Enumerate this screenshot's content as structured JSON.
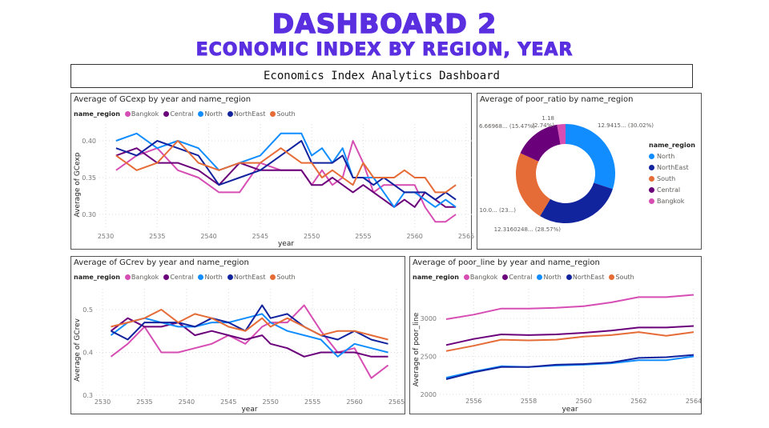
{
  "header": {
    "title": "DASHBOARD 2",
    "subtitle": "ECONOMIC INDEX BY REGION, YEAR",
    "banner": "Economics Index Analytics Dashboard"
  },
  "colors": {
    "Bangkok": "#d64eb3",
    "Central": "#6b007b",
    "North": "#118dff",
    "NorthEast": "#12239e",
    "South": "#e66c37",
    "title": "#5a2fe0"
  },
  "legend_title": "name_region",
  "chart_data": [
    {
      "id": "gcexp",
      "type": "line",
      "title": "Average of GCexp by year and name_region",
      "xlabel": "year",
      "ylabel": "Average of GCexp",
      "xticks": [
        "2530",
        "2535",
        "2540",
        "2545",
        "2550",
        "2555",
        "2560",
        "2565"
      ],
      "yticks": [
        "0.30",
        "0.35",
        "0.40"
      ],
      "xlim": [
        2530,
        2565
      ],
      "grid": true,
      "legend": "top-left",
      "x": [
        2531,
        2533,
        2535,
        2537,
        2539,
        2541,
        2543,
        2545,
        2547,
        2549,
        2550,
        2551,
        2552,
        2553,
        2554,
        2555,
        2556,
        2557,
        2558,
        2559,
        2560,
        2561,
        2562,
        2563,
        2564
      ],
      "series": [
        {
          "name": "Bangkok",
          "values": [
            0.36,
            0.38,
            0.39,
            0.36,
            0.35,
            0.33,
            0.33,
            0.37,
            0.36,
            0.36,
            0.34,
            0.36,
            0.34,
            0.35,
            0.4,
            0.37,
            0.33,
            0.34,
            0.34,
            0.34,
            0.34,
            0.31,
            0.29,
            0.29,
            0.3
          ]
        },
        {
          "name": "Central",
          "values": [
            0.38,
            0.39,
            0.37,
            0.37,
            0.36,
            0.34,
            0.37,
            0.36,
            0.36,
            0.36,
            0.34,
            0.34,
            0.35,
            0.34,
            0.33,
            0.34,
            0.33,
            0.32,
            0.31,
            0.32,
            0.31,
            0.33,
            0.32,
            0.31,
            0.31
          ]
        },
        {
          "name": "North",
          "values": [
            0.4,
            0.41,
            0.39,
            0.4,
            0.39,
            0.36,
            0.37,
            0.38,
            0.41,
            0.41,
            0.38,
            0.39,
            0.37,
            0.39,
            0.35,
            0.35,
            0.35,
            0.33,
            0.31,
            0.33,
            0.33,
            0.32,
            0.31,
            0.32,
            0.31
          ]
        },
        {
          "name": "NorthEast",
          "values": [
            0.39,
            0.38,
            0.4,
            0.39,
            0.38,
            0.34,
            0.35,
            0.36,
            0.38,
            0.4,
            0.37,
            0.37,
            0.37,
            0.38,
            0.35,
            0.35,
            0.34,
            0.35,
            0.34,
            0.33,
            0.33,
            0.33,
            0.32,
            0.33,
            0.32
          ]
        },
        {
          "name": "South",
          "values": [
            0.38,
            0.36,
            0.37,
            0.4,
            0.37,
            0.36,
            0.37,
            0.37,
            0.39,
            0.37,
            0.37,
            0.35,
            0.36,
            0.35,
            0.34,
            0.37,
            0.35,
            0.35,
            0.35,
            0.36,
            0.35,
            0.35,
            0.33,
            0.33,
            0.34
          ]
        }
      ]
    },
    {
      "id": "poor_ratio",
      "type": "pie",
      "title": "Average of poor_ratio by name_region",
      "legend": "right",
      "slices": [
        {
          "name": "North",
          "percent": 30.02,
          "label": "12.9415... (30.02%)"
        },
        {
          "name": "NorthEast",
          "percent": 28.57,
          "label": "12.3160248... (28.57%)"
        },
        {
          "name": "South",
          "percent": 23.2,
          "label": "10.0... (23...)"
        },
        {
          "name": "Central",
          "percent": 15.47,
          "label": "6.66968... (15.47%)"
        },
        {
          "name": "Bangkok",
          "percent": 2.74,
          "label": "1.18",
          "label2": "(2.74%)"
        }
      ]
    },
    {
      "id": "gcrev",
      "type": "line",
      "title": "Average of GCrev by year and name_region",
      "xlabel": "year",
      "ylabel": "Average of GCrev",
      "xticks": [
        "2530",
        "2535",
        "2540",
        "2545",
        "2550",
        "2555",
        "2560",
        "2565"
      ],
      "yticks": [
        "0.3",
        "0.4",
        "0.5"
      ],
      "xlim": [
        2530,
        2565
      ],
      "grid": true,
      "legend": "top-left",
      "x": [
        2531,
        2533,
        2535,
        2537,
        2539,
        2541,
        2543,
        2545,
        2547,
        2549,
        2550,
        2552,
        2554,
        2556,
        2558,
        2560,
        2562,
        2564
      ],
      "series": [
        {
          "name": "Bangkok",
          "values": [
            0.39,
            0.42,
            0.46,
            0.4,
            0.4,
            0.41,
            0.42,
            0.44,
            0.42,
            0.46,
            0.47,
            0.47,
            0.51,
            0.45,
            0.4,
            0.41,
            0.34,
            0.37
          ]
        },
        {
          "name": "Central",
          "values": [
            0.45,
            0.48,
            0.46,
            0.46,
            0.47,
            0.44,
            0.45,
            0.44,
            0.43,
            0.44,
            0.42,
            0.41,
            0.39,
            0.4,
            0.4,
            0.4,
            0.39,
            0.39
          ]
        },
        {
          "name": "North",
          "values": [
            0.44,
            0.47,
            0.48,
            0.47,
            0.46,
            0.46,
            0.47,
            0.47,
            0.48,
            0.49,
            0.47,
            0.45,
            0.44,
            0.43,
            0.39,
            0.42,
            0.41,
            0.4
          ]
        },
        {
          "name": "NorthEast",
          "values": [
            0.45,
            0.43,
            0.47,
            0.47,
            0.47,
            0.46,
            0.48,
            0.47,
            0.45,
            0.51,
            0.48,
            0.49,
            0.46,
            0.44,
            0.43,
            0.45,
            0.43,
            0.42
          ]
        },
        {
          "name": "South",
          "values": [
            0.46,
            0.47,
            0.48,
            0.5,
            0.47,
            0.49,
            0.48,
            0.46,
            0.45,
            0.48,
            0.46,
            0.48,
            0.46,
            0.44,
            0.45,
            0.45,
            0.44,
            0.43
          ]
        }
      ]
    },
    {
      "id": "poor_line",
      "type": "line",
      "title": "Average of poor_line by year and name_region",
      "xlabel": "year",
      "ylabel": "Average of poor_line",
      "xticks": [
        "2556",
        "2558",
        "2560",
        "2562",
        "2564"
      ],
      "yticks": [
        "2000",
        "2500",
        "3000"
      ],
      "xlim": [
        2555,
        2564
      ],
      "grid": true,
      "legend": "top-left",
      "x": [
        2555,
        2556,
        2557,
        2558,
        2559,
        2560,
        2561,
        2562,
        2563,
        2564
      ],
      "series": [
        {
          "name": "Bangkok",
          "values": [
            2990,
            3050,
            3130,
            3130,
            3140,
            3160,
            3210,
            3280,
            3280,
            3310
          ]
        },
        {
          "name": "Central",
          "values": [
            2650,
            2730,
            2790,
            2780,
            2790,
            2810,
            2840,
            2880,
            2880,
            2900
          ]
        },
        {
          "name": "North",
          "values": [
            2220,
            2300,
            2370,
            2360,
            2380,
            2390,
            2410,
            2450,
            2450,
            2500
          ]
        },
        {
          "name": "NorthEast",
          "values": [
            2200,
            2290,
            2360,
            2360,
            2390,
            2400,
            2420,
            2480,
            2490,
            2520
          ]
        },
        {
          "name": "South",
          "values": [
            2570,
            2640,
            2720,
            2710,
            2720,
            2760,
            2780,
            2820,
            2770,
            2820
          ]
        }
      ]
    }
  ]
}
